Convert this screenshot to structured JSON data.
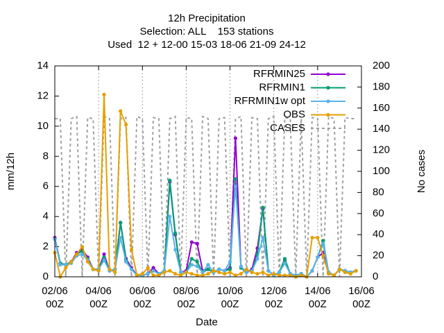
{
  "chart_data": {
    "type": "line",
    "title": "12h Precipitation",
    "subtitle": [
      "Selection: ALL    153 stations",
      "Used  12 + 12-00 15-03 18-06 21-09 24-12"
    ],
    "xlabel": "Date",
    "ylabel": "mm/12h",
    "y2label": "No cases",
    "xlim": [
      2,
      16
    ],
    "ylim": [
      0,
      14
    ],
    "y2lim": [
      0,
      200
    ],
    "xticks": [
      {
        "value": 2,
        "label": "02/06\n00Z"
      },
      {
        "value": 4,
        "label": "04/06\n00Z"
      },
      {
        "value": 6,
        "label": "06/06\n00Z"
      },
      {
        "value": 8,
        "label": "08/06\n00Z"
      },
      {
        "value": 10,
        "label": "10/06\n00Z"
      },
      {
        "value": 12,
        "label": "12/06\n00Z"
      },
      {
        "value": 14,
        "label": "14/06\n00Z"
      },
      {
        "value": 16,
        "label": "16/06\n00Z"
      }
    ],
    "yticks": [
      0,
      2,
      4,
      6,
      8,
      10,
      12,
      14
    ],
    "y2ticks": [
      0,
      20,
      40,
      60,
      80,
      100,
      120,
      140,
      160,
      180,
      200
    ],
    "grid": "x",
    "legend": "top-right",
    "x": [
      2,
      2.25,
      2.5,
      2.75,
      3,
      3.25,
      3.5,
      3.75,
      4,
      4.25,
      4.5,
      4.75,
      5,
      5.25,
      5.5,
      5.75,
      6,
      6.25,
      6.5,
      6.75,
      7,
      7.25,
      7.5,
      7.75,
      8,
      8.25,
      8.5,
      8.75,
      9,
      9.25,
      9.5,
      9.75,
      10,
      10.25,
      10.5,
      10.75,
      11,
      11.25,
      11.5,
      11.75,
      12,
      12.25,
      12.5,
      12.75,
      13,
      13.25,
      13.5,
      13.75,
      14,
      14.25,
      14.5,
      14.75,
      15,
      15.25,
      15.5,
      15.75
    ],
    "series": [
      {
        "name": "RFRMIN25",
        "color": "#9400d3",
        "values": [
          2.6,
          0.9,
          0.8,
          1.0,
          1.6,
          1.8,
          1.3,
          0.5,
          0.5,
          1.5,
          0.4,
          0.5,
          3.6,
          1.2,
          0.6,
          0.1,
          0.1,
          0.2,
          0.6,
          0.2,
          0.4,
          6.3,
          2.8,
          0.3,
          0.4,
          2.3,
          2.2,
          0.4,
          0.5,
          0.3,
          0.5,
          0.4,
          0.6,
          9.2,
          0.6,
          0.3,
          0.5,
          1.9,
          4.5,
          0.4,
          0.1,
          0.3,
          1.1,
          0.2,
          0.1,
          0.2,
          0,
          0.4,
          1.3,
          1.6,
          0.3,
          0.1,
          0.5,
          0.4,
          0.3,
          0.4
        ]
      },
      {
        "name": "RFRMIN1",
        "color": "#009e73",
        "values": [
          2.5,
          0.9,
          0.8,
          1.0,
          1.5,
          1.7,
          1.2,
          0.5,
          0.5,
          1.3,
          0.4,
          0.5,
          3.6,
          1.1,
          0.5,
          0.1,
          0.1,
          0.2,
          0.4,
          0.2,
          0.4,
          6.4,
          2.9,
          0.3,
          0.3,
          1.2,
          1.0,
          0.3,
          0.5,
          0.3,
          0.5,
          0.4,
          0.5,
          6.5,
          0.6,
          0.3,
          0.4,
          1.5,
          4.6,
          0.4,
          0.1,
          0.3,
          1.2,
          0.2,
          0.1,
          0.2,
          0,
          0.4,
          1.3,
          2.4,
          0.3,
          0.1,
          0.5,
          0.4,
          0.3,
          0.4
        ]
      },
      {
        "name": "RFRMIN1w opt",
        "color": "#56b4e9",
        "values": [
          2.5,
          0.8,
          0.8,
          0.9,
          1.4,
          1.5,
          1.1,
          0.5,
          0.5,
          1.1,
          0.4,
          0.5,
          2.6,
          1.0,
          0.5,
          0.1,
          0.1,
          0.2,
          0.4,
          0.2,
          0.4,
          4.0,
          1.8,
          0.3,
          0.3,
          0.8,
          0.7,
          0.3,
          0.8,
          0.3,
          0.5,
          0.4,
          1.0,
          6.0,
          0.7,
          0.3,
          0.4,
          1.2,
          2.6,
          0.4,
          0.1,
          0.3,
          0.9,
          0.2,
          0.1,
          0.2,
          0,
          0.4,
          1.3,
          2.2,
          0.3,
          0.1,
          0.5,
          0.4,
          0.3,
          0.4
        ]
      },
      {
        "name": "OBS",
        "color": "#e69f00",
        "values": [
          1.6,
          0,
          0.6,
          1.0,
          1.5,
          2.0,
          1.0,
          0.5,
          0.4,
          12.1,
          0.5,
          0.3,
          11.0,
          10.1,
          1.8,
          0.1,
          0.2,
          0.6,
          0.1,
          0.1,
          0.3,
          0.4,
          0.2,
          0.1,
          0.3,
          0.2,
          0.1,
          0.1,
          0.2,
          0.4,
          0.3,
          0.2,
          0.3,
          0.1,
          0.2,
          0.5,
          0.3,
          0.2,
          0.3,
          0.1,
          0.2,
          0.1,
          0.1,
          0.1,
          0,
          0.1,
          0,
          2.6,
          2.6,
          1.4,
          0.2,
          0.1,
          0.5,
          0.3,
          0.2,
          0.4
        ]
      },
      {
        "name": "CASES",
        "color": "#a0a0a0",
        "axis": "y2",
        "values": [
          150,
          150,
          0,
          150,
          152,
          0,
          151,
          150,
          0,
          152,
          150,
          0,
          150,
          151,
          0,
          152,
          150,
          0,
          151,
          150,
          0,
          150,
          152,
          0,
          151,
          150,
          0,
          152,
          150,
          0,
          150,
          151,
          0,
          150,
          152,
          0,
          151,
          150,
          0,
          150,
          152,
          0,
          151,
          150,
          0,
          150,
          0,
          151,
          150,
          0,
          152,
          150,
          0,
          151,
          150,
          150
        ]
      }
    ]
  }
}
